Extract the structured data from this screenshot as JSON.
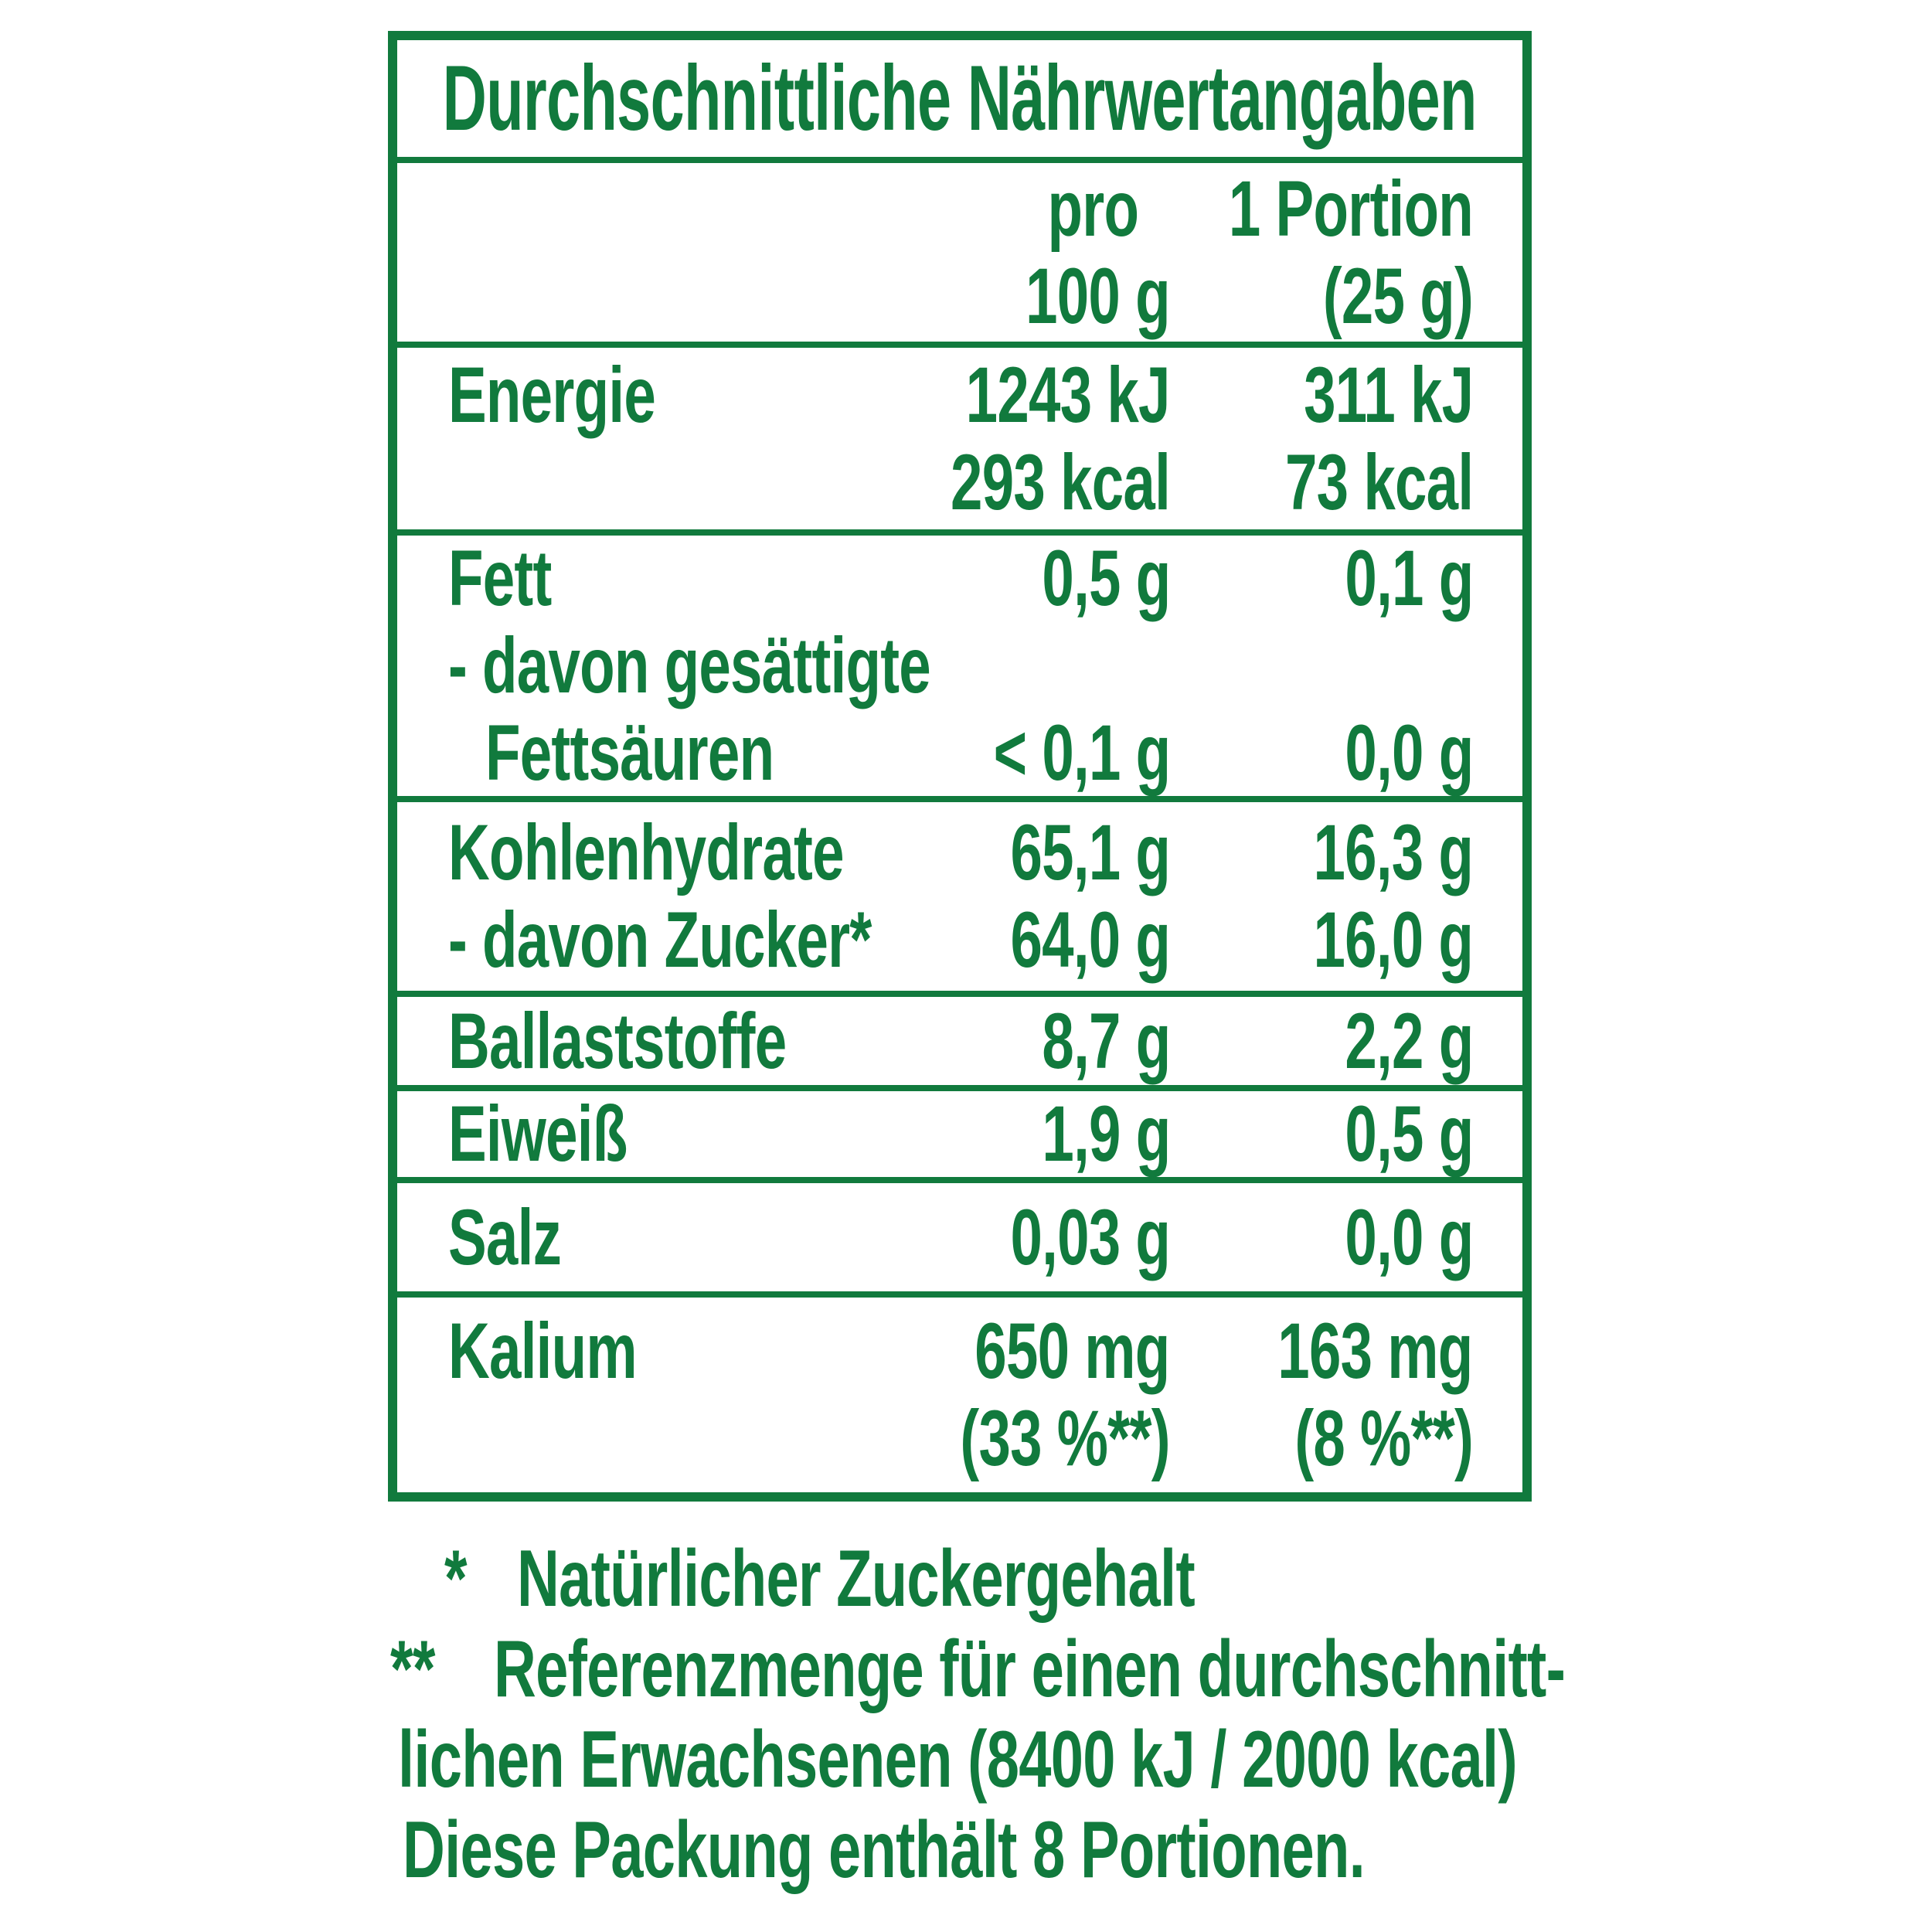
{
  "colors": {
    "green": "#117a3d",
    "background": "#ffffff"
  },
  "table": {
    "title": "Durchschnittliche Nährwertangaben",
    "header": {
      "lines": [
        {
          "label": "",
          "per100": "pro",
          "portion": "1 Portion"
        },
        {
          "label": "",
          "per100": "100 g",
          "portion": "(25 g)"
        }
      ]
    },
    "rows": [
      {
        "name": "Energie",
        "lines": [
          {
            "label": "Energie",
            "per100": "1243 kJ",
            "portion": "311 kJ"
          },
          {
            "label": "",
            "per100": "293 kcal",
            "portion": "73 kcal"
          }
        ]
      },
      {
        "name": "Fett",
        "lines": [
          {
            "label": "Fett",
            "per100": "0,5 g",
            "portion": "0,1 g"
          },
          {
            "label": "- davon gesättigte",
            "per100": "",
            "portion": ""
          },
          {
            "label": "Fettsäuren",
            "per100": "< 0,1 g",
            "portion": "0,0 g"
          }
        ]
      },
      {
        "name": "Kohlenhydrate",
        "lines": [
          {
            "label": "Kohlenhydrate",
            "per100": "65,1 g",
            "portion": "16,3 g"
          },
          {
            "label": "- davon Zucker*",
            "per100": "64,0 g",
            "portion": "16,0 g"
          }
        ]
      },
      {
        "name": "Ballaststoffe",
        "lines": [
          {
            "label": "Ballaststoffe",
            "per100": "8,7 g",
            "portion": "2,2 g"
          }
        ]
      },
      {
        "name": "Eiweiß",
        "lines": [
          {
            "label": "Eiweiß",
            "per100": "1,9 g",
            "portion": "0,5 g"
          }
        ]
      },
      {
        "name": "Salz",
        "lines": [
          {
            "label": "Salz",
            "per100": "0,03 g",
            "portion": "0,0 g"
          }
        ]
      },
      {
        "name": "Kalium",
        "lines": [
          {
            "label": "Kalium",
            "per100": "650 mg",
            "portion": "163 mg"
          },
          {
            "label": "",
            "per100": "(33 %**)",
            "portion": "(8 %**)"
          }
        ]
      }
    ]
  },
  "footnotes": [
    {
      "marker": "*",
      "text": "Natürlicher Zuckergehalt"
    },
    {
      "marker": "**",
      "text": "Referenzmenge für einen durchschnitt-"
    },
    {
      "marker": "",
      "text": "lichen Erwachsenen (8400 kJ / 2000 kcal)"
    },
    {
      "marker": "",
      "text": "Diese Packung enthält 8 Portionen."
    }
  ]
}
